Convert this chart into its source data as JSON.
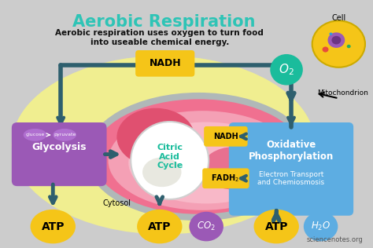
{
  "title": "Aerobic Respiration",
  "subtitle": "Aerobic respiration uses oxygen to turn food\ninto useable chemical energy.",
  "bg_color": "#cccccc",
  "cell_bg": "#f0ee90",
  "title_color": "#2ec4b6",
  "subtitle_color": "#111111",
  "nadh_color": "#f5c518",
  "fadh_color": "#f5c518",
  "atp_color": "#f5c518",
  "glycolysis_color": "#9b59b6",
  "ox_phos_color": "#5dade2",
  "arrow_color": "#2e5f6e",
  "o2_color": "#1abc9c",
  "co2_color": "#9b59b6",
  "h2o_color": "#5dade2",
  "watermark": "sciencenotes.org"
}
